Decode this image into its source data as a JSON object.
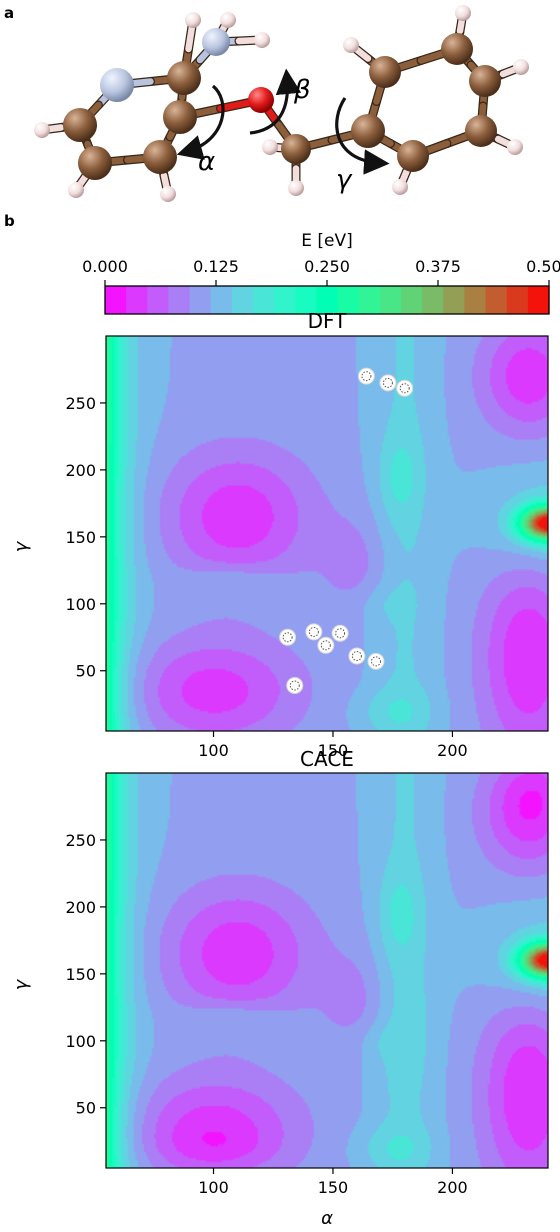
{
  "panel_labels": {
    "a": "a",
    "b": "b"
  },
  "molecule": {
    "torsion_labels": [
      "α",
      "β",
      "γ"
    ]
  },
  "colorbar": {
    "label": "E [eV]",
    "range": [
      0.0,
      0.5
    ],
    "ticks": [
      "0.000",
      "0.125",
      "0.250",
      "0.375",
      "0.500"
    ],
    "levels": 21,
    "colormap": "rainbow"
  },
  "colors": {
    "carbon": "#8b5e3c",
    "hydrogen": "#f2dede",
    "nitrogen": "#b8c4de",
    "oxygen": "#e21a1a",
    "bond": "#8b5e3c",
    "sample_marker": "#ffffff"
  },
  "chart_data": [
    {
      "type": "heatmap",
      "title": "DFT",
      "xlabel": "",
      "ylabel": "γ",
      "xlim": [
        55,
        240
      ],
      "ylim": [
        5,
        300
      ],
      "xticks": [
        100,
        150,
        200
      ],
      "yticks": [
        50,
        100,
        150,
        200,
        250
      ],
      "colorbar_range": [
        0.0,
        0.5
      ],
      "sample_points": [
        {
          "x": 164,
          "y": 270
        },
        {
          "x": 173,
          "y": 265
        },
        {
          "x": 180,
          "y": 261
        },
        {
          "x": 131,
          "y": 75
        },
        {
          "x": 142,
          "y": 79
        },
        {
          "x": 147,
          "y": 69
        },
        {
          "x": 153,
          "y": 78
        },
        {
          "x": 160,
          "y": 61
        },
        {
          "x": 168,
          "y": 57
        },
        {
          "x": 134,
          "y": 39
        }
      ]
    },
    {
      "type": "heatmap",
      "title": "CACE",
      "xlabel": "α",
      "ylabel": "γ",
      "xlim": [
        55,
        240
      ],
      "ylim": [
        5,
        300
      ],
      "xticks": [
        100,
        150,
        200
      ],
      "yticks": [
        50,
        100,
        150,
        200,
        250
      ],
      "colorbar_range": [
        0.0,
        0.5
      ],
      "sample_points": []
    }
  ]
}
